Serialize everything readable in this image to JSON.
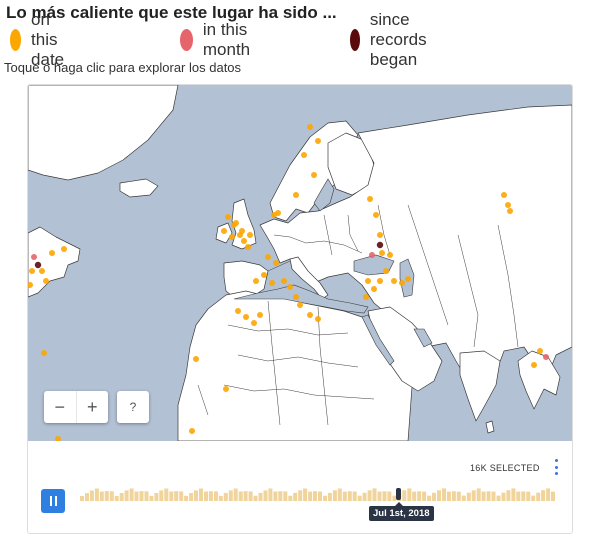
{
  "header": {
    "title": "Lo más caliente que este lugar ha sido ...",
    "subtitle": "Toque o haga clic para explorar los datos"
  },
  "legend": {
    "items": [
      {
        "label": "on this date",
        "color": "#fca600"
      },
      {
        "label": "in this month",
        "color": "#e6656c"
      },
      {
        "label": "since records began",
        "color": "#5a0a0a"
      }
    ]
  },
  "map": {
    "ocean_color": "#b3c1d4",
    "land_color": "#ffffff",
    "border_color": "#3a3a3a",
    "controls": {
      "zoom_out_label": "−",
      "zoom_in_label": "+",
      "help_label": "?"
    }
  },
  "timeline": {
    "selected_label": "16K SELECTED",
    "date_label": "Jul 1st, 2018",
    "bar_color": "#f0d49c",
    "play_button_color": "#2f7fe0",
    "icons": [
      "pause-icon",
      "more-vertical-icon"
    ]
  }
}
